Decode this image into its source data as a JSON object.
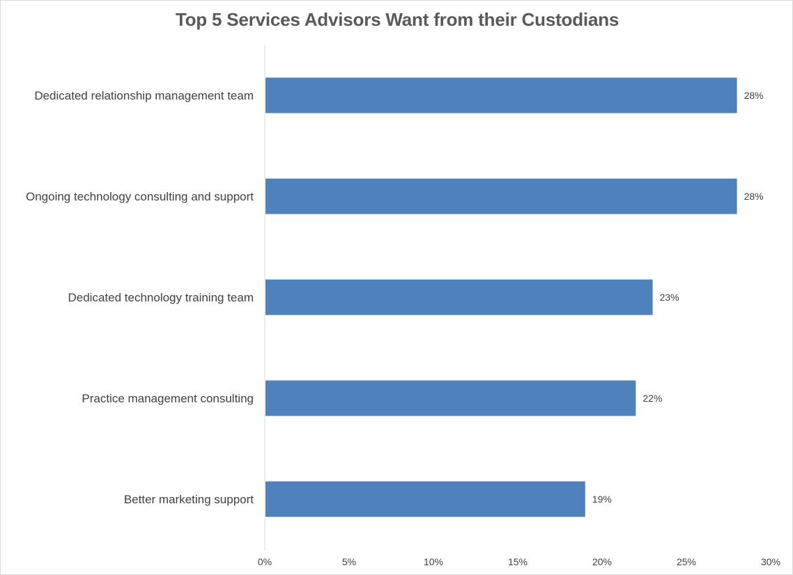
{
  "chart_data": {
    "type": "bar",
    "orientation": "horizontal",
    "title": "Top 5 Services Advisors Want from their Custodians",
    "categories": [
      "Dedicated relationship management team",
      "Ongoing technology consulting and support",
      "Dedicated technology training team",
      "Practice management consulting",
      "Better marketing support"
    ],
    "values": [
      28,
      28,
      23,
      22,
      19
    ],
    "data_labels": [
      "28%",
      "28%",
      "23%",
      "22%",
      "19%"
    ],
    "xlim": [
      0,
      30
    ],
    "xticks": [
      0,
      5,
      10,
      15,
      20,
      25,
      30
    ],
    "xtick_labels": [
      "0%",
      "5%",
      "10%",
      "15%",
      "20%",
      "25%",
      "30%"
    ],
    "xlabel": "",
    "ylabel": "",
    "grid": false,
    "legend": "none",
    "bar_color": "#4f81bd",
    "axis_color": "#d9d9d9"
  }
}
